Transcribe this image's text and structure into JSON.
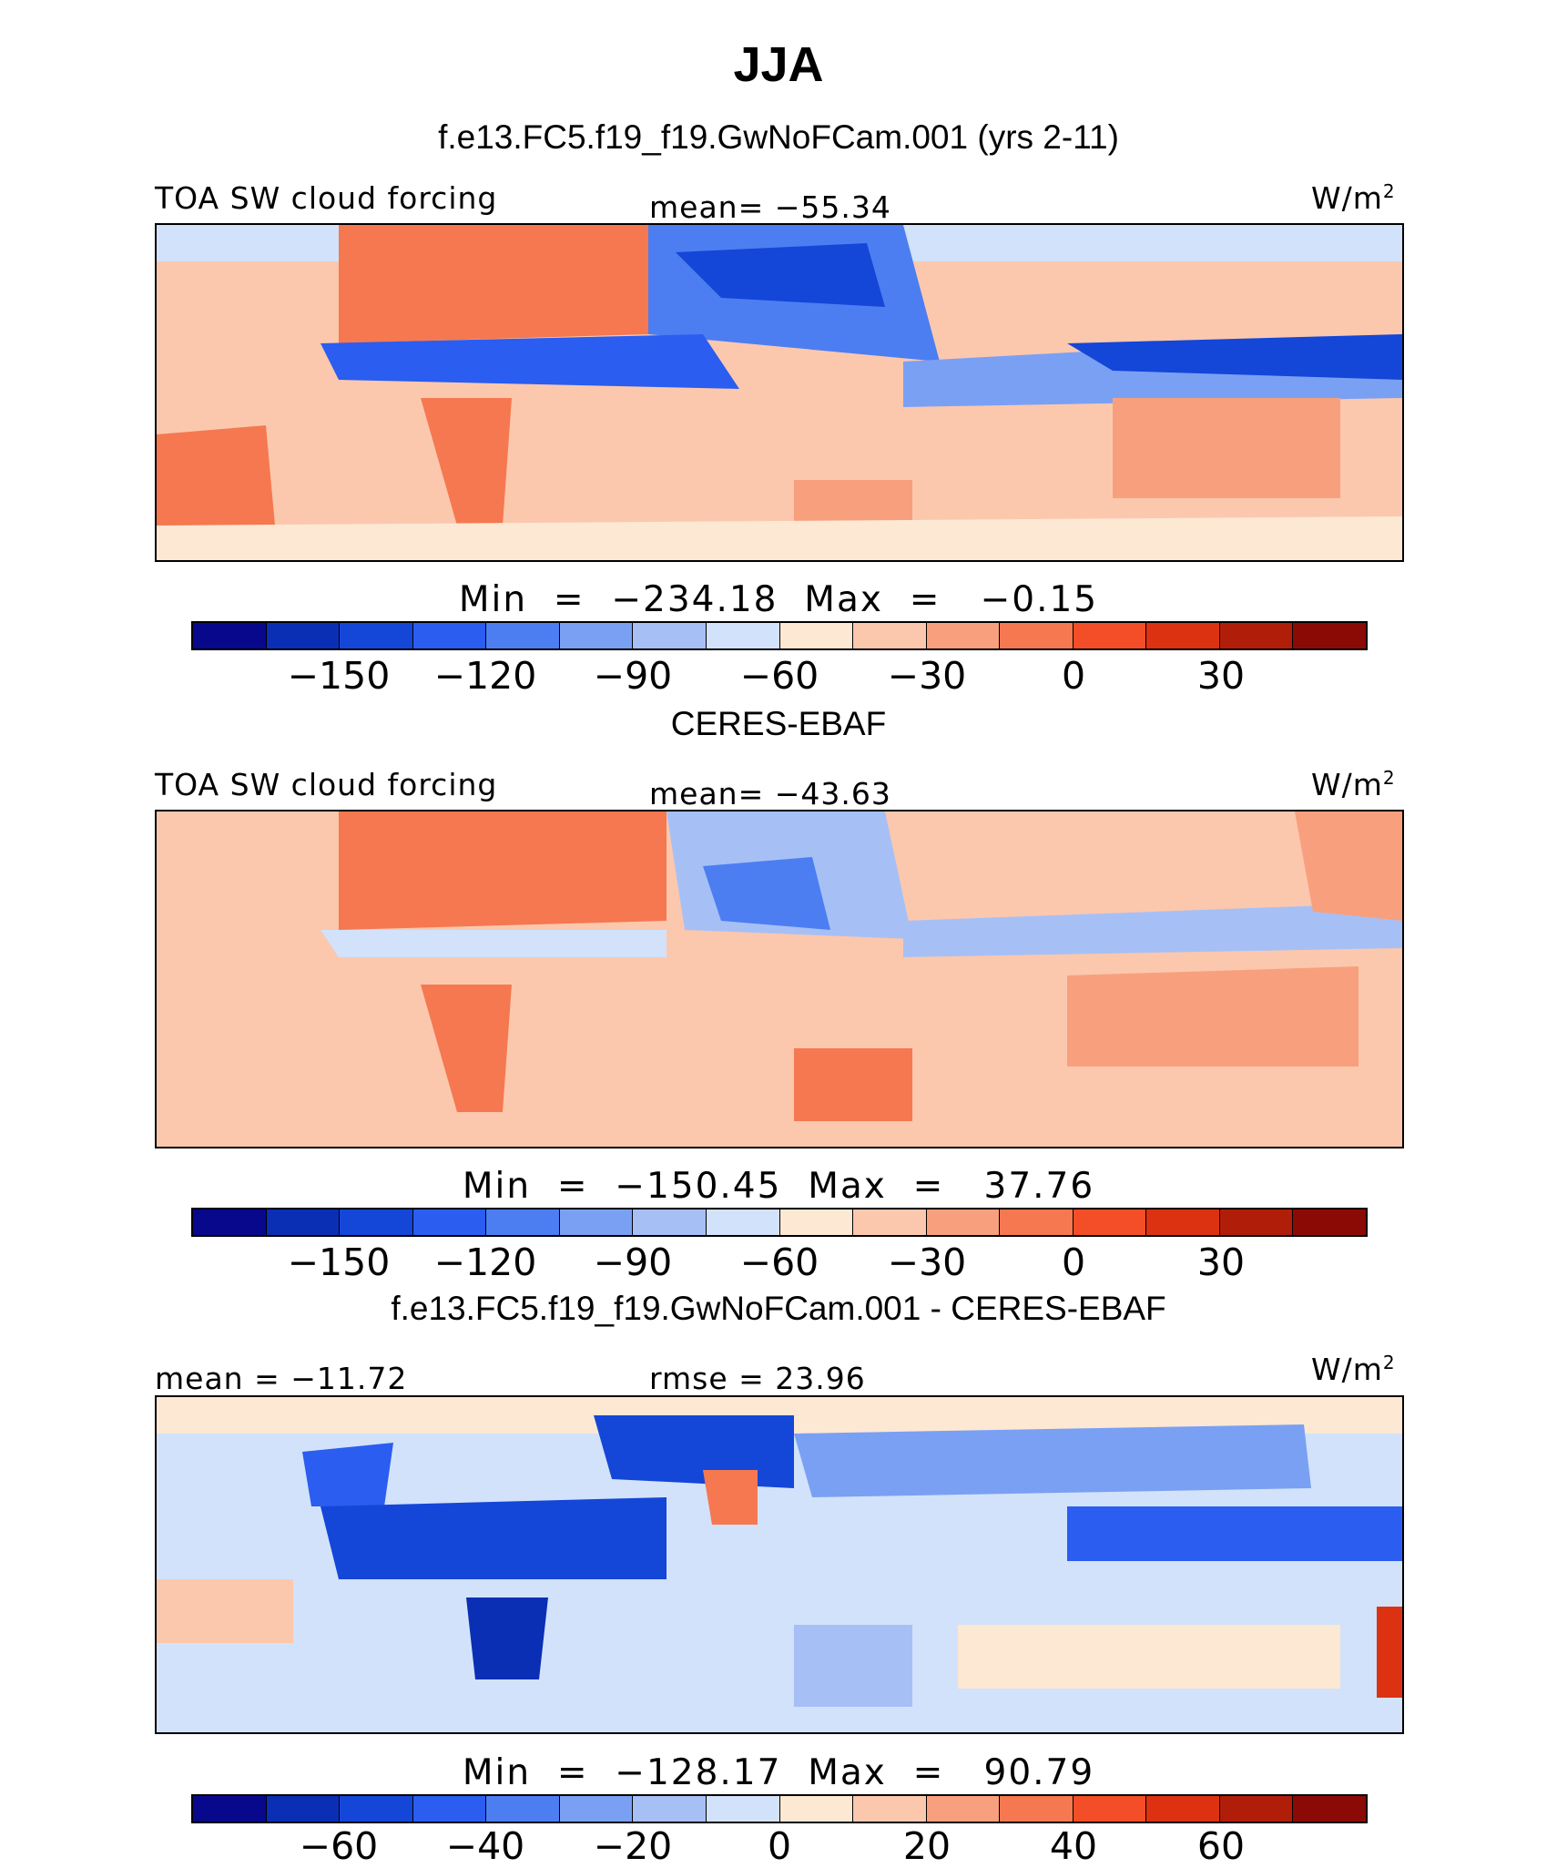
{
  "title": "JJA",
  "colors": [
    "#08088c",
    "#0a2fb4",
    "#1446d8",
    "#2a5df0",
    "#4c7ef2",
    "#7aa0f4",
    "#a6c0f6",
    "#d2e2fa",
    "#fde8d4",
    "#fbc8ae",
    "#f8a07e",
    "#f57850",
    "#f44e28",
    "#dc3212",
    "#b01e0a",
    "#8c0a06"
  ],
  "panels": [
    {
      "title": "f.e13.FC5.f19_f19.GwNoFCam.001 (yrs 2-11)",
      "left_label": "TOA SW cloud forcing",
      "center_label": "mean=  −55.34",
      "units": "W/m",
      "units_sup": "2",
      "minmax": "Min  =  −234.18  Max  =   −0.15",
      "ticks": [
        "−150",
        "−120",
        "−90",
        "−60",
        "−30",
        "0",
        "30"
      ]
    },
    {
      "title": "CERES-EBAF",
      "left_label": "TOA SW cloud forcing",
      "center_label": "mean=  −43.63",
      "units": "W/m",
      "units_sup": "2",
      "minmax": "Min  =  −150.45  Max  =   37.76",
      "ticks": [
        "−150",
        "−120",
        "−90",
        "−60",
        "−30",
        "0",
        "30"
      ]
    },
    {
      "title": "f.e13.FC5.f19_f19.GwNoFCam.001 - CERES-EBAF",
      "left_label": "mean  =  −11.72",
      "center_label": "rmse  =   23.96",
      "units": "W/m",
      "units_sup": "2",
      "minmax": "Min  =  −128.17  Max  =   90.79",
      "ticks": [
        "−60",
        "−40",
        "−20",
        "0",
        "20",
        "40",
        "60"
      ]
    }
  ],
  "chart_data": [
    {
      "type": "heatmap",
      "title": "f.e13.FC5.f19_f19.GwNoFCam.001 (yrs 2-11)",
      "variable": "TOA SW cloud forcing",
      "units": "W/m2",
      "season": "JJA",
      "mean": -55.34,
      "min": -234.18,
      "max": -0.15,
      "contour_levels": [
        -165,
        -150,
        -135,
        -120,
        -105,
        -90,
        -75,
        -60,
        -45,
        -30,
        -15,
        0,
        15,
        30,
        45
      ],
      "colorbar_ticks": [
        -150,
        -120,
        -90,
        -60,
        -30,
        0,
        30
      ]
    },
    {
      "type": "heatmap",
      "title": "CERES-EBAF",
      "variable": "TOA SW cloud forcing",
      "units": "W/m2",
      "season": "JJA",
      "mean": -43.63,
      "min": -150.45,
      "max": 37.76,
      "contour_levels": [
        -165,
        -150,
        -135,
        -120,
        -105,
        -90,
        -75,
        -60,
        -45,
        -30,
        -15,
        0,
        15,
        30,
        45
      ],
      "colorbar_ticks": [
        -150,
        -120,
        -90,
        -60,
        -30,
        0,
        30
      ]
    },
    {
      "type": "heatmap",
      "title": "f.e13.FC5.f19_f19.GwNoFCam.001 - CERES-EBAF",
      "units": "W/m2",
      "season": "JJA",
      "mean": -11.72,
      "rmse": 23.96,
      "min": -128.17,
      "max": 90.79,
      "contour_levels": [
        -70,
        -60,
        -50,
        -40,
        -30,
        -20,
        -10,
        0,
        10,
        20,
        30,
        40,
        50,
        60,
        70
      ],
      "colorbar_ticks": [
        -60,
        -40,
        -20,
        0,
        20,
        40,
        60
      ]
    }
  ]
}
